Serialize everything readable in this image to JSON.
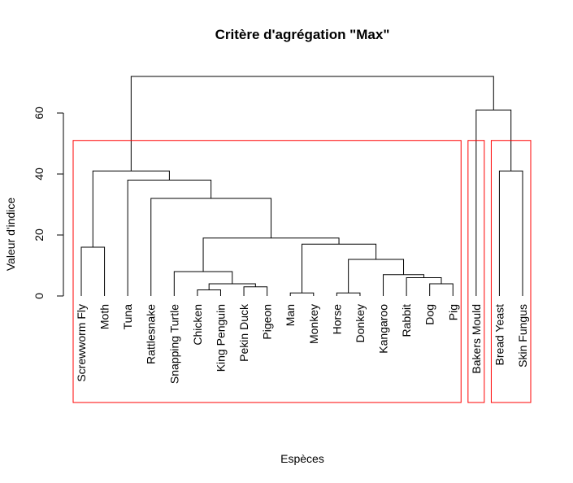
{
  "chart_data": {
    "type": "dendrogram",
    "title": "Critère d'agrégation \"Max\"",
    "xlabel": "Espèces",
    "ylabel": "Valeur d'indice",
    "ylim": [
      0,
      72
    ],
    "yticks": [
      0,
      20,
      40,
      60
    ],
    "leaves": [
      "Screwworm Fly",
      "Moth",
      "Tuna",
      "Rattlesnake",
      "Snapping Turtle",
      "Chicken",
      "King Penguin",
      "Pekin Duck",
      "Pigeon",
      "Man",
      "Monkey",
      "Horse",
      "Donkey",
      "Kangaroo",
      "Rabbit",
      "Dog",
      "Pig",
      "Bakers Mould",
      "Bread Yeast",
      "Skin Fungus"
    ],
    "merges": [
      {
        "a": 9,
        "b": 10,
        "height": 1
      },
      {
        "a": 11,
        "b": 12,
        "height": 1
      },
      {
        "a": 5,
        "b": 6,
        "height": 2
      },
      {
        "a": 7,
        "b": 8,
        "height": 3
      },
      {
        "a": 15,
        "b": 16,
        "height": 4
      },
      {
        "a": 14,
        "b": "n4",
        "height": 6
      },
      {
        "a": 13,
        "b": "n5",
        "height": 7
      },
      {
        "a": "n2",
        "b": "n3",
        "height": 4
      },
      {
        "a": 4,
        "b": "n7",
        "height": 8
      },
      {
        "a": "n1",
        "b": "n6",
        "height": 12
      },
      {
        "a": "n0",
        "b": "n9",
        "height": 17
      },
      {
        "a": "n8",
        "b": "n10",
        "height": 19
      },
      {
        "a": 0,
        "b": 1,
        "height": 16
      },
      {
        "a": 3,
        "b": "n11",
        "height": 32
      },
      {
        "a": 2,
        "b": "n13",
        "height": 38
      },
      {
        "a": "n12",
        "b": "n14",
        "height": 41
      },
      {
        "a": 18,
        "b": 19,
        "height": 41
      },
      {
        "a": 17,
        "b": "n16",
        "height": 61
      },
      {
        "a": "n15",
        "b": "n17",
        "height": 72
      }
    ],
    "clusters": [
      {
        "from": 0,
        "to": 16,
        "color": "#ff0000"
      },
      {
        "from": 17,
        "to": 17,
        "color": "#ff0000"
      },
      {
        "from": 18,
        "to": 19,
        "color": "#ff0000"
      }
    ],
    "cut_height": 51
  }
}
